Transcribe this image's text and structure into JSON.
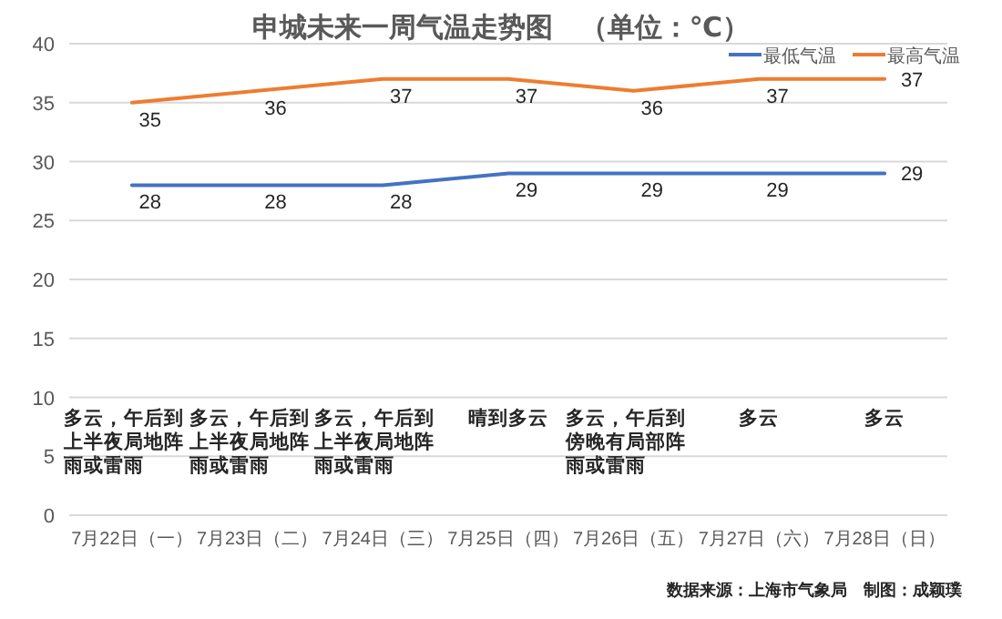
{
  "chart_data": {
    "type": "line",
    "title": "申城未来一周气温走势图　（单位：℃）",
    "categories": [
      "7月22日（一）",
      "7月23日（二）",
      "7月24日（三）",
      "7月25日（四）",
      "7月26日（五）",
      "7月27日（六）",
      "7月28日（日）"
    ],
    "series": [
      {
        "name": "最低气温",
        "color": "#4472c4",
        "values": [
          28,
          28,
          28,
          29,
          29,
          29,
          29
        ]
      },
      {
        "name": "最高气温",
        "color": "#ed7d31",
        "values": [
          35,
          36,
          37,
          37,
          36,
          37,
          37
        ]
      }
    ],
    "ylim": [
      0,
      40
    ],
    "yticks": [
      0,
      5,
      10,
      15,
      20,
      25,
      30,
      35,
      40
    ],
    "grid": "y",
    "legend": "top right",
    "data_labels": true,
    "annotations": [
      "多云，午后到上半夜局地阵雨或雷雨",
      "多云，午后到上半夜局地阵雨或雷雨",
      "多云，午后到上半夜局地阵雨或雷雨",
      "晴到多云",
      "多云，午后到傍晚有局部阵雨或雷雨",
      "多云",
      "多云",
      "数据来源：上海市气象局　制图：成颖璞"
    ]
  }
}
